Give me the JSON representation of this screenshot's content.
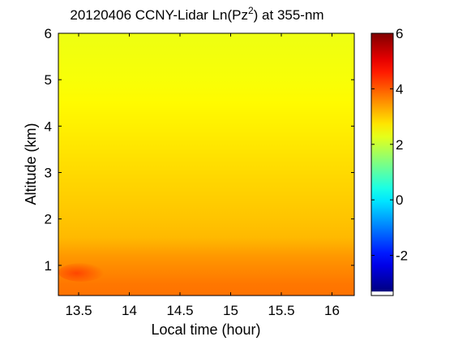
{
  "chart_data": {
    "type": "heatmap",
    "title": {
      "pre": "20120406 CCNY-Lidar Ln(Pz",
      "sup": "2",
      "post": ") at 355-nm"
    },
    "xlabel": "Local time (hour)",
    "ylabel": "Altitude (km)",
    "xlim": [
      13.3,
      16.22
    ],
    "ylim": [
      0.35,
      6
    ],
    "xticks": [
      {
        "value": 13.5,
        "label": "13.5"
      },
      {
        "value": 14,
        "label": "14"
      },
      {
        "value": 14.5,
        "label": "14.5"
      },
      {
        "value": 15,
        "label": "15"
      },
      {
        "value": 15.5,
        "label": "15.5"
      },
      {
        "value": 16,
        "label": "16"
      }
    ],
    "yticks": [
      {
        "value": 1,
        "label": "1"
      },
      {
        "value": 2,
        "label": "2"
      },
      {
        "value": 3,
        "label": "3"
      },
      {
        "value": 4,
        "label": "4"
      },
      {
        "value": 5,
        "label": "5"
      },
      {
        "value": 6,
        "label": "6"
      }
    ],
    "colormap": "jet",
    "colorbar": {
      "min": -3.3,
      "max": 6,
      "ticks": [
        {
          "value": -2,
          "label": "-2"
        },
        {
          "value": 0,
          "label": "0"
        },
        {
          "value": 2,
          "label": "2"
        },
        {
          "value": 4,
          "label": "4"
        },
        {
          "value": 6,
          "label": "6"
        }
      ]
    },
    "field": {
      "altitude_km": [
        0.35,
        0.6,
        0.8,
        1.0,
        1.2,
        1.4,
        1.6,
        2.0,
        2.5,
        3.0,
        3.5,
        4.0,
        4.5,
        5.0,
        5.5,
        6.0
      ],
      "value": [
        3.8,
        3.75,
        3.65,
        3.55,
        3.45,
        3.3,
        3.15,
        3.05,
        2.95,
        2.85,
        2.75,
        2.65,
        2.55,
        2.45,
        2.4,
        2.35
      ]
    },
    "features": [
      {
        "label": "",
        "x_range": [
          13.3,
          13.75
        ],
        "y_range": [
          0.65,
          1.05
        ],
        "value": 4.2
      }
    ]
  }
}
